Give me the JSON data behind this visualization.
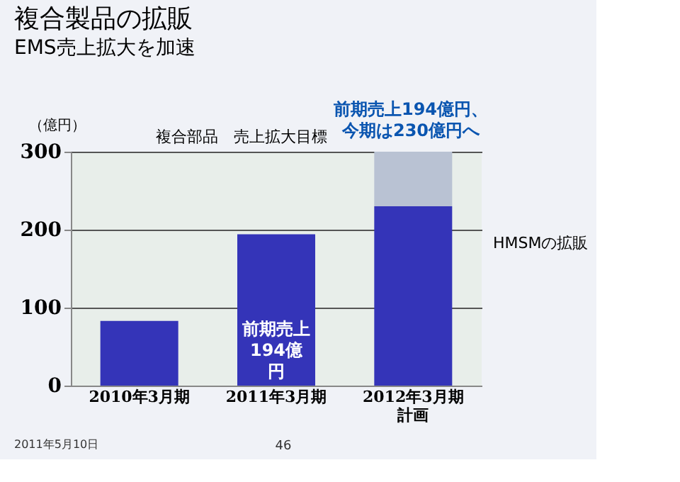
{
  "chart_data": {
    "type": "bar",
    "title": "複合製品の拡販",
    "subtitle": "EMS売上拡大を加速",
    "ylabel": "（億円）",
    "categories": [
      "2010年3月期",
      "2011年3月期",
      "2012年3月期計画"
    ],
    "stacked": true,
    "series": [
      {
        "color": "#3434b8",
        "values": [
          83,
          194,
          230
        ]
      },
      {
        "color": "#b9c2d3",
        "values": [
          null,
          null,
          70
        ]
      }
    ],
    "ylim": [
      0,
      300
    ],
    "yticks": [
      0,
      100,
      200,
      300
    ],
    "grid": "y",
    "annotations": [
      "複合部品　売上拡大目標",
      "前期売上194億円、今期は230億円へ",
      "前期売上194億円",
      "HMSMの拡販",
      "2011年5月10日",
      "46"
    ]
  }
}
